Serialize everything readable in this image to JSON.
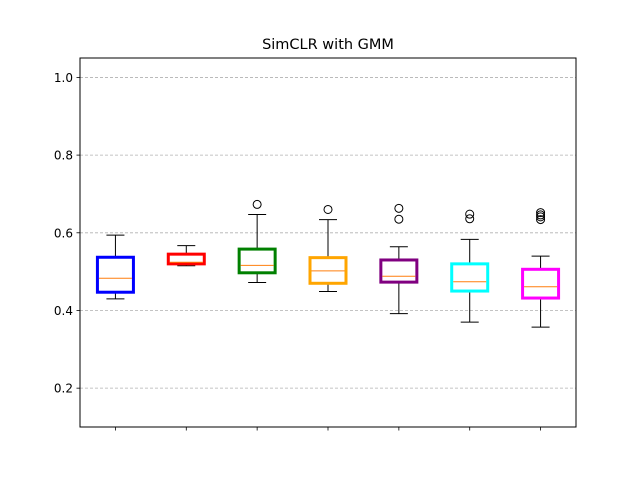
{
  "chart_data": {
    "type": "box",
    "title": "SimCLR with GMM",
    "xlabel": "",
    "ylabel": "",
    "ylim": [
      0.1,
      1.05
    ],
    "yticks": [
      0.2,
      0.4,
      0.6,
      0.8,
      1.0
    ],
    "ytick_labels": [
      "0.2",
      "0.4",
      "0.6",
      "0.8",
      "1.0"
    ],
    "grid": "y-dashed",
    "median_color": "#ff7f0e",
    "boxes": [
      {
        "color": "#0000ff",
        "whisker_low": 0.43,
        "q1": 0.447,
        "median": 0.483,
        "q3": 0.537,
        "whisker_high": 0.594,
        "outliers": []
      },
      {
        "color": "#ff0000",
        "whisker_low": 0.515,
        "q1": 0.52,
        "median": 0.524,
        "q3": 0.545,
        "whisker_high": 0.567,
        "outliers": []
      },
      {
        "color": "#008000",
        "whisker_low": 0.472,
        "q1": 0.497,
        "median": 0.516,
        "q3": 0.558,
        "whisker_high": 0.647,
        "outliers": [
          0.673
        ]
      },
      {
        "color": "#ffa500",
        "whisker_low": 0.449,
        "q1": 0.47,
        "median": 0.502,
        "q3": 0.536,
        "whisker_high": 0.634,
        "outliers": [
          0.66
        ]
      },
      {
        "color": "#800080",
        "whisker_low": 0.392,
        "q1": 0.473,
        "median": 0.488,
        "q3": 0.53,
        "whisker_high": 0.564,
        "outliers": [
          0.635,
          0.663
        ]
      },
      {
        "color": "#00ffff",
        "whisker_low": 0.37,
        "q1": 0.45,
        "median": 0.474,
        "q3": 0.52,
        "whisker_high": 0.583,
        "outliers": [
          0.636,
          0.648
        ]
      },
      {
        "color": "#ff00ff",
        "whisker_low": 0.357,
        "q1": 0.432,
        "median": 0.461,
        "q3": 0.506,
        "whisker_high": 0.54,
        "outliers": [
          0.634,
          0.641,
          0.646,
          0.652
        ]
      }
    ]
  }
}
